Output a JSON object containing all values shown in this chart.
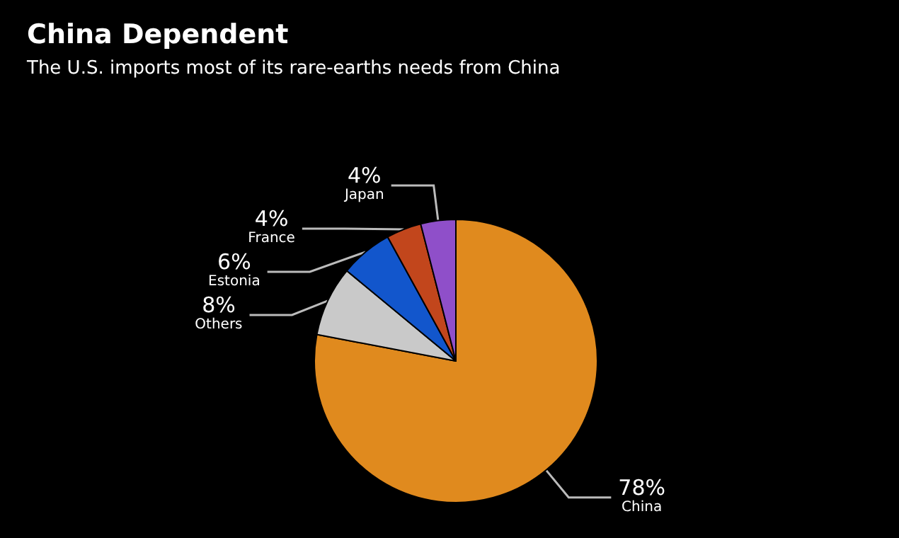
{
  "chart_data": {
    "type": "pie",
    "title": "China Dependent",
    "subtitle": "The U.S. imports most of its rare-earths needs from China",
    "categories": [
      "China",
      "Others",
      "Estonia",
      "France",
      "Japan"
    ],
    "values": [
      78,
      8,
      6,
      4,
      4
    ],
    "value_labels": [
      "78%",
      "8%",
      "6%",
      "4%",
      "4%"
    ],
    "colors": [
      "#e08a1e",
      "#c9c9c9",
      "#1256cc",
      "#c2461c",
      "#8f4fc9"
    ],
    "legend": false
  }
}
